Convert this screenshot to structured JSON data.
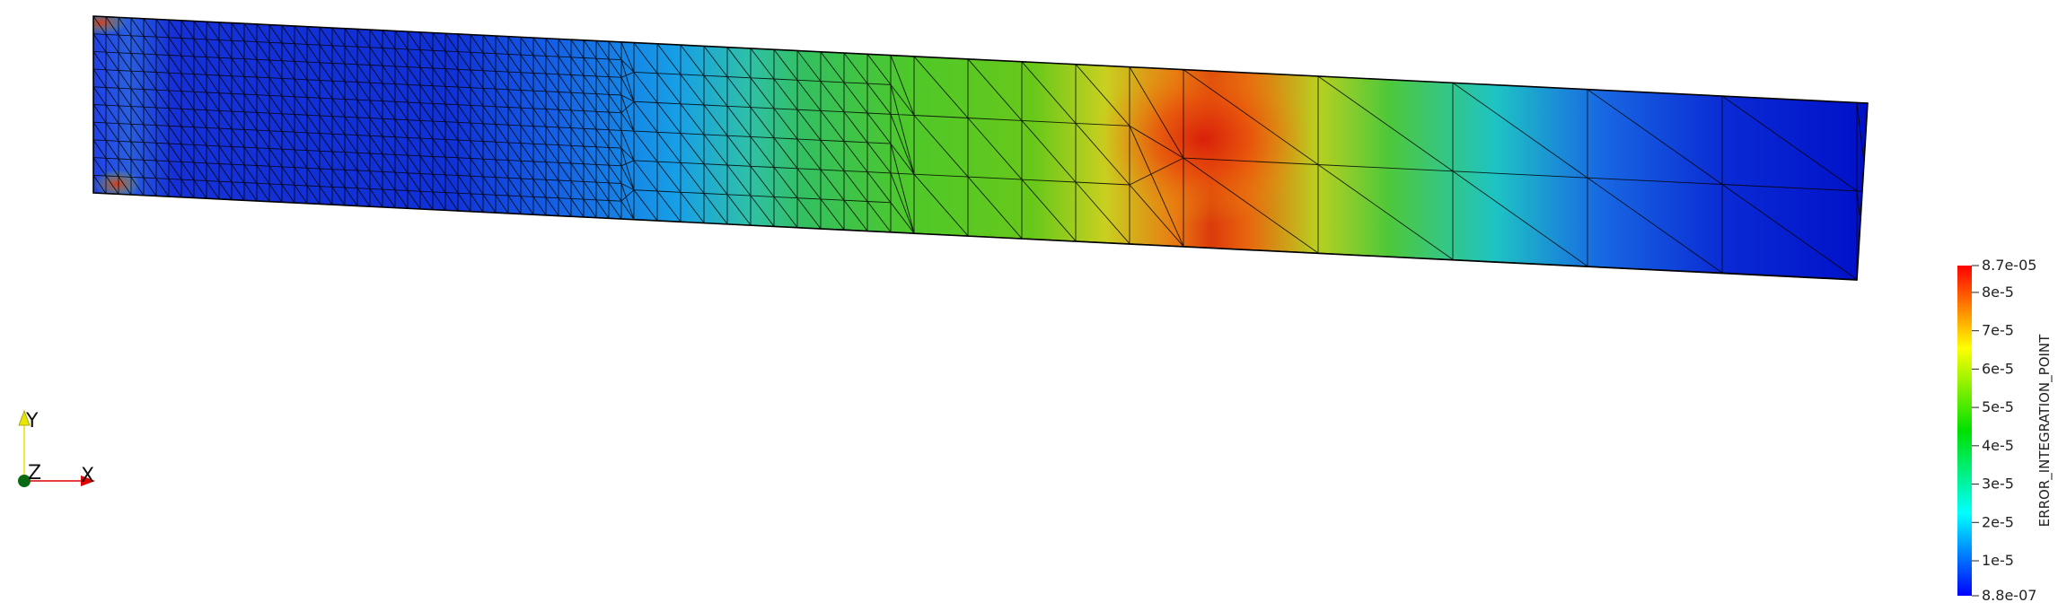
{
  "scalar_bar": {
    "title": "ERROR_INTEGRATION_POINT",
    "ticks": [
      {
        "value": 8.7e-05,
        "label": "8.7e-05"
      },
      {
        "value": 8e-05,
        "label": "8e-5"
      },
      {
        "value": 7e-05,
        "label": "7e-5"
      },
      {
        "value": 6e-05,
        "label": "6e-5"
      },
      {
        "value": 5e-05,
        "label": "5e-5"
      },
      {
        "value": 4e-05,
        "label": "4e-5"
      },
      {
        "value": 3e-05,
        "label": "3e-5"
      },
      {
        "value": 2e-05,
        "label": "2e-5"
      },
      {
        "value": 1e-05,
        "label": "1e-5"
      },
      {
        "value": 8.8e-07,
        "label": "8.8e-07"
      }
    ],
    "range": [
      8.8e-07,
      8.7e-05
    ],
    "colormap": [
      "#0000ff",
      "#00ffff",
      "#00e000",
      "#ffff00",
      "#ff0000"
    ]
  },
  "axes_triad": {
    "x_label": "X",
    "y_label": "Y",
    "z_label": "Z",
    "x_color": "#e00000",
    "y_color": "#e6e600",
    "z_color": "#006400"
  },
  "mesh": {
    "edge_color": "#000000"
  }
}
